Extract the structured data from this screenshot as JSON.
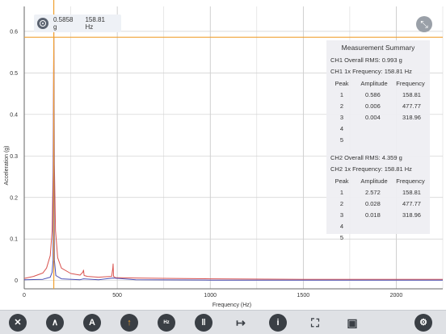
{
  "chart_data": {
    "type": "line",
    "xlabel": "Frequency (Hz)",
    "ylabel": "Acceleration (g)",
    "xlim": [
      0,
      2250
    ],
    "ylim": [
      -0.02,
      0.66
    ],
    "x_ticks": [
      0,
      500,
      1000,
      1500,
      2000
    ],
    "x_tick_labels": [
      "0",
      "500",
      "1000",
      "1500",
      "2000"
    ],
    "y_ticks": [
      0,
      0.1,
      0.2,
      0.3,
      0.4,
      0.5,
      0.6
    ],
    "y_tick_labels": [
      "0",
      "0.1",
      "0.2",
      "0.3",
      "0.4",
      "0.5",
      "0.6"
    ],
    "grid": true,
    "series": [
      {
        "color": "#d9534f",
        "x": [
          0,
          50,
          100,
          120,
          140,
          150,
          155,
          158.81,
          162,
          168,
          180,
          200,
          250,
          300,
          315,
          318.96,
          322,
          340,
          400,
          470,
          476,
          477.77,
          480,
          490,
          600,
          800,
          1000,
          1500,
          2000,
          2250
        ],
        "y": [
          0.005,
          0.01,
          0.018,
          0.03,
          0.06,
          0.12,
          0.26,
          0.6,
          0.28,
          0.12,
          0.055,
          0.03,
          0.017,
          0.013,
          0.02,
          0.025,
          0.012,
          0.01,
          0.008,
          0.01,
          0.03,
          0.04,
          0.01,
          0.007,
          0.006,
          0.005,
          0.004,
          0.003,
          0.003,
          0.003
        ]
      },
      {
        "color": "#4a4fb5",
        "x": [
          0,
          100,
          140,
          150,
          155,
          158.81,
          162,
          170,
          200,
          300,
          318.96,
          400,
          477.77,
          600,
          1000,
          1500,
          2000,
          2250
        ],
        "y": [
          0.002,
          0.003,
          0.008,
          0.02,
          0.05,
          0.586,
          0.05,
          0.012,
          0.004,
          0.002,
          0.004,
          0.002,
          0.006,
          0.002,
          0.001,
          0.001,
          0.001,
          0.001
        ]
      }
    ],
    "cursor": {
      "x": 158.81,
      "y": 0.5858,
      "color": "#f0a030"
    }
  },
  "cursor_readout": {
    "amplitude": "0.5858 g",
    "frequency": "158.81 Hz"
  },
  "summary": {
    "title": "Measurement Summary",
    "ch1_rms": "CH1 Overall RMS: 0.993 g",
    "ch1_freq": "CH1 1x Frequency: 158.81 Hz",
    "ch2_rms": "CH2 Overall RMS: 4.359 g",
    "ch2_freq": "CH2 1x Frequency: 158.81 Hz",
    "headers": [
      "Peak",
      "Amplitude",
      "Frequency"
    ],
    "ch1_rows": [
      [
        "1",
        "0.586",
        "158.81"
      ],
      [
        "2",
        "0.006",
        "477.77"
      ],
      [
        "3",
        "0.004",
        "318.96"
      ],
      [
        "4",
        "",
        ""
      ],
      [
        "5",
        "",
        ""
      ]
    ],
    "ch2_rows": [
      [
        "1",
        "2.572",
        "158.81"
      ],
      [
        "2",
        "0.028",
        "477.77"
      ],
      [
        "3",
        "0.018",
        "318.96"
      ],
      [
        "4",
        "",
        ""
      ],
      [
        "5",
        "",
        ""
      ]
    ]
  },
  "toolbar": {
    "icons": [
      "close-icon",
      "spectrum-icon",
      "auto-scale-icon",
      "peak-icon",
      "hz-icon",
      "pause-icon",
      "span-icon",
      "info-icon",
      "fullscreen-icon",
      "save-icon",
      "settings-icon"
    ],
    "auto_label": "A",
    "hz_label": "Hz",
    "info_label": "i"
  }
}
